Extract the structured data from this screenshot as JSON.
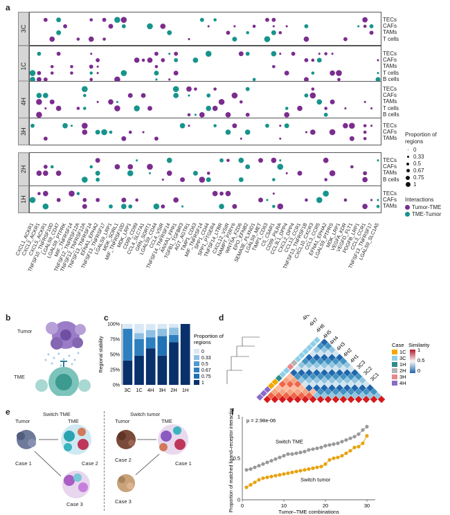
{
  "panels": {
    "a": "a",
    "b": "b",
    "c": "c",
    "d": "d",
    "e": "e",
    "f": "f"
  },
  "panel_a": {
    "facets": [
      {
        "case": "3C",
        "rows": [
          "TECs",
          "CAFs",
          "TAMs",
          "T cells"
        ]
      },
      {
        "case": "1C",
        "rows": [
          "TECs",
          "CAFs",
          "TAMs",
          "T cells",
          "B cells"
        ]
      },
      {
        "case": "4H",
        "rows": [
          "TECs",
          "CAFs",
          "TAMs",
          "T cells",
          "B cells"
        ]
      },
      {
        "case": "3H",
        "rows": [
          "TECs",
          "CAFs",
          "TAMs"
        ]
      },
      {
        "case": "2H",
        "rows": [
          "TECs",
          "CAFs",
          "TAMs",
          "B cells"
        ]
      },
      {
        "case": "1H",
        "rows": [
          "TECs",
          "CAFs",
          "TAMs"
        ]
      }
    ],
    "x_labels": [
      "CXCL1_ACKR1",
      "CXCL2_ACKR1",
      "CXCL5_ACKR1",
      "TNFSF10_TNFRSF10D",
      "LGALS9_CD47",
      "LGALS9_PTPRK",
      "MIF_TNFRSF14",
      "TNFSF12_TNFRSF12A",
      "TNFSF12_TNFRSF12A",
      "TNFSF13_TNFRSF14",
      "EFNA1_EPHA2",
      "TNFSF13_TNFRSF17",
      "LGALS9_LRP1",
      "MDK_SORL1",
      "MIF_TNFRSF10D",
      "MDK_LRP1",
      "CD99_CD99",
      "CCL4_SLC7A1",
      "GRN_SORT1",
      "LGALS9_CD44",
      "CCL4_VSIR",
      "TNFSF14_TNFRSF14",
      "ANXA1_FPR1",
      "TGFB1_TGFBR3",
      "AGT_AGTR1",
      "TIMP1_CD63",
      "MIF_TNFRSF14",
      "SPP1_CD44",
      "SPP1_PTGER4",
      "TNFSF14_LTBR",
      "CXCL12_VSIR",
      "NAMPT_P2RY6",
      "WNT5A_FZD6",
      "EPO_EFNB2",
      "SEMA3E_PLXND1",
      "LGALS9_MET",
      "TIMP1_CD63",
      "C5_C5AR1",
      "CD99_PILRA",
      "CCL3L1_DPP4",
      "CXCL2_DPP4",
      "CCL13_CCR1",
      "TNFSF13_TNFRSF1B",
      "CXCL10_CXCR3",
      "CCL3_CCR5",
      "EFNA1_EPHA2",
      "LGALS9_PTPRS",
      "MDK_LRP1",
      "VEGFA_KDR",
      "VEGFD_FLT1",
      "PDGFB_LRP1",
      "CCL3_CCR1",
      "TNFSF13_TNFRSF17",
      "LGALS9_SLC1A5"
    ],
    "legend": {
      "size_title": "Proportion of regions",
      "size_values": [
        "0",
        "0.33",
        "0.5",
        "0.67",
        "0.75",
        "1"
      ],
      "color_title": "Interactions",
      "color_items": [
        {
          "label": "Tumor-TME",
          "color": "#7b2d8e"
        },
        {
          "label": "TME-Tumor",
          "color": "#17948c"
        }
      ]
    }
  },
  "panel_b": {
    "tumor_label": "Tumor",
    "tme_label": "TME"
  },
  "panel_c": {
    "chart_data": {
      "type": "bar",
      "stacked": true,
      "categories": [
        "3C",
        "1C",
        "4H",
        "3H",
        "2H",
        "1H"
      ],
      "ylabel": "Regional stability",
      "yticks": [
        "0%",
        "25%",
        "50%",
        "75%",
        "100%"
      ],
      "ylim": [
        0,
        100
      ],
      "legend_title": "Proportion of regions",
      "series": [
        {
          "name": "1",
          "color": "#08306b",
          "values": [
            40,
            48,
            60,
            48,
            70,
            100
          ]
        },
        {
          "name": "0.75",
          "color": "#2171b5",
          "values": [
            0,
            0,
            0,
            32,
            0,
            0
          ]
        },
        {
          "name": "0.67",
          "color": "#2d7fc0",
          "values": [
            52,
            27,
            18,
            0,
            12,
            0
          ]
        },
        {
          "name": "0.5",
          "color": "#4f9bd0",
          "values": [
            0,
            0,
            0,
            0,
            0,
            0
          ]
        },
        {
          "name": "0.33",
          "color": "#8fc0e2",
          "values": [
            0,
            10,
            12,
            12,
            12,
            0
          ]
        },
        {
          "name": "0",
          "color": "#d8e8f6",
          "values": [
            8,
            15,
            10,
            8,
            6,
            0
          ]
        }
      ]
    }
  },
  "panel_d": {
    "labels": [
      "4H8",
      "4H7",
      "4H6",
      "4H5",
      "4H4",
      "4H3",
      "4H2",
      "4H1",
      "3C3",
      "3C2",
      "3C1"
    ],
    "case_title": "Case",
    "cases": [
      {
        "label": "1C",
        "color": "#f2a900"
      },
      {
        "label": "3C",
        "color": "#8ecfe6"
      },
      {
        "label": "1H",
        "color": "#2f8c8c"
      },
      {
        "label": "2H",
        "color": "#b3b3b3"
      },
      {
        "label": "3H",
        "color": "#e8868a"
      },
      {
        "label": "4H",
        "color": "#8a6bc7"
      }
    ],
    "similarity_title": "Similarity",
    "similarity_ticks": [
      "1",
      "0.5",
      "0"
    ]
  },
  "panel_e": {
    "left_title": "Switch TME",
    "right_title": "Switch tumor",
    "tumor": "Tumor",
    "tme": "TME",
    "left_cases": [
      "Case 1",
      "Case 2",
      "Case 3"
    ],
    "right_cases": [
      "Case 2",
      "Case 1",
      "Case 3"
    ]
  },
  "panel_f": {
    "chart_data": {
      "type": "scatter",
      "title": "p = 2.98e-06",
      "xlabel": "Tumor–TME combinations",
      "ylabel": "Proportion of matched ligand–receptor interactions",
      "xlim": [
        0,
        32
      ],
      "ylim": [
        0,
        1
      ],
      "xticks": [
        "0",
        "10",
        "20",
        "30"
      ],
      "yticks": [
        "0",
        "0.5",
        "1"
      ],
      "series": [
        {
          "name": "Switch TME",
          "color": "#999999",
          "x": [
            1,
            2,
            3,
            4,
            5,
            6,
            7,
            8,
            9,
            10,
            11,
            12,
            13,
            14,
            15,
            16,
            17,
            18,
            19,
            20,
            21,
            22,
            23,
            24,
            25,
            26,
            27,
            28,
            29,
            30
          ],
          "y": [
            0.36,
            0.37,
            0.39,
            0.41,
            0.43,
            0.45,
            0.47,
            0.49,
            0.51,
            0.53,
            0.55,
            0.55,
            0.56,
            0.57,
            0.58,
            0.6,
            0.61,
            0.62,
            0.63,
            0.65,
            0.66,
            0.67,
            0.68,
            0.7,
            0.72,
            0.74,
            0.76,
            0.79,
            0.84,
            0.88
          ]
        },
        {
          "name": "Switch tumor",
          "color": "#e8a311",
          "x": [
            1,
            2,
            3,
            4,
            5,
            6,
            7,
            8,
            9,
            10,
            11,
            12,
            13,
            14,
            15,
            16,
            17,
            18,
            19,
            20,
            21,
            22,
            23,
            24,
            25,
            26,
            27,
            28,
            29,
            30
          ],
          "y": [
            0.15,
            0.18,
            0.21,
            0.24,
            0.26,
            0.27,
            0.28,
            0.29,
            0.3,
            0.31,
            0.32,
            0.33,
            0.34,
            0.35,
            0.36,
            0.37,
            0.38,
            0.39,
            0.4,
            0.43,
            0.48,
            0.5,
            0.51,
            0.53,
            0.56,
            0.59,
            0.63,
            0.64,
            0.68,
            0.77
          ]
        }
      ]
    }
  }
}
